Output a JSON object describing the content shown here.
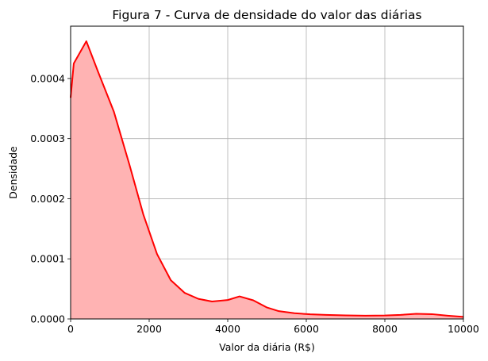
{
  "chart_data": {
    "type": "area",
    "title": "Figura 7 - Curva de densidade do valor das diárias",
    "xlabel": "Valor da diária (R$)",
    "ylabel": "Densidade",
    "xlim": [
      0,
      10000
    ],
    "ylim": [
      0,
      0.000487
    ],
    "xticks": [
      0,
      2000,
      4000,
      6000,
      8000,
      10000
    ],
    "xtick_labels": [
      "0",
      "2000",
      "4000",
      "6000",
      "8000",
      "10000"
    ],
    "yticks": [
      0,
      0.0001,
      0.0002,
      0.0003,
      0.0004
    ],
    "ytick_labels": [
      "0.0000",
      "0.0001",
      "0.0002",
      "0.0003",
      "0.0004"
    ],
    "grid": true,
    "line_color": "#ff0000",
    "fill_color": "#ffb3b3",
    "series": [
      {
        "x": [
          0,
          80,
          400,
          700,
          1100,
          1500,
          1850,
          2200,
          2550,
          2900,
          3250,
          3600,
          4000,
          4300,
          4650,
          5000,
          5300,
          5700,
          6100,
          6500,
          7000,
          7500,
          8000,
          8400,
          8800,
          9200,
          9600,
          10000
        ],
        "y": [
          0.000368,
          0.000425,
          0.000462,
          0.000411,
          0.000345,
          0.000256,
          0.000174,
          0.000108,
          6.45e-05,
          4.35e-05,
          3.35e-05,
          2.9e-05,
          3.15e-05,
          3.75e-05,
          3.1e-05,
          1.9e-05,
          1.3e-05,
          9.5e-06,
          7.8e-06,
          6.8e-06,
          6e-06,
          5.5e-06,
          5.8e-06,
          6.8e-06,
          8.5e-06,
          8e-06,
          5.5e-06,
          3.5e-06
        ]
      }
    ]
  }
}
